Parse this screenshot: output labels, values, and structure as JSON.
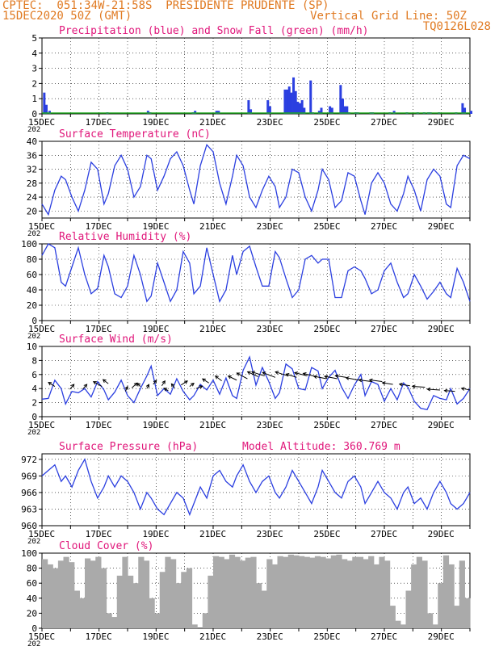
{
  "header": {
    "line1": "CPTEC:  051:34W-21:58S  PRESIDENTE PRUDENTE (SP)",
    "line2_left": "15DEC2020 50Z (GMT)",
    "line2_right": "Vertical Grid Line: 50Z",
    "line3_right": "TQ0126L028"
  },
  "year_label": "202",
  "x_tick_labels": [
    "15DEC",
    "17DEC",
    "19DEC",
    "21DEC",
    "23DEC",
    "25DEC",
    "27DEC",
    "29DEC"
  ],
  "colors": {
    "line": "#2b3fe0",
    "precip": "#2b3fe0",
    "snow": "#1ea81e",
    "cloud": "#aaaaaa",
    "title": "#e0167a",
    "header": "#e07a22"
  },
  "chart_data": [
    {
      "type": "bar",
      "title": "Precipitation (blue) and Snow Fall (green) (mm/h)",
      "ylim": [
        0,
        5
      ],
      "yticks": [
        0,
        1,
        2,
        3,
        4,
        5
      ],
      "x_unit": "days since 15DEC",
      "series": [
        {
          "name": "Precipitation",
          "color": "#2b3fe0",
          "x": [
            0.05,
            0.15,
            0.3,
            3.0,
            4.9,
            5.0,
            7.0,
            7.1,
            8.1,
            8.2,
            9.6,
            9.7,
            10.5,
            10.6,
            11.3,
            11.4,
            11.5,
            11.6,
            11.7,
            11.8,
            11.9,
            12.0,
            12.1,
            12.2,
            12.5,
            12.6,
            12.9,
            13.0,
            13.4,
            13.5,
            13.9,
            14.0,
            14.1,
            14.2,
            14.3,
            14.6,
            14.7,
            15.3,
            15.4,
            16.2,
            16.4,
            17.0,
            17.5,
            17.8,
            18.0,
            18.1,
            18.5,
            19.3,
            19.6,
            19.7,
            20.0
          ],
          "values": [
            1.4,
            0.6,
            0.2,
            0.1,
            0.2,
            0.1,
            0.1,
            0.2,
            0.2,
            0.2,
            0.9,
            0.3,
            0.9,
            0.5,
            1.6,
            1.6,
            1.8,
            1.4,
            2.4,
            1.5,
            0.8,
            0.7,
            0.9,
            0.4,
            2.2,
            0.1,
            0.2,
            0.4,
            0.5,
            0.4,
            1.9,
            1.0,
            0.5,
            0.5,
            0.1,
            0.1,
            0.1,
            0.1,
            0.1,
            0.1,
            0.2,
            0.1,
            0.1,
            0.1,
            0.1,
            0.1,
            0.1,
            0.1,
            0.7,
            0.4,
            0.2
          ]
        },
        {
          "name": "Snow Fall",
          "color": "#1ea81e",
          "x": [
            0,
            20
          ],
          "values": [
            0,
            0
          ]
        }
      ]
    },
    {
      "type": "line",
      "title": "Surface Temperature (nC)",
      "ylim": [
        18,
        40
      ],
      "yticks": [
        20,
        24,
        28,
        32,
        36,
        40
      ],
      "x_unit": "days since 15DEC",
      "series": [
        {
          "name": "Surface Temperature",
          "x": [
            0,
            0.3,
            0.6,
            0.9,
            1.1,
            1.4,
            1.7,
            2.0,
            2.3,
            2.6,
            2.9,
            3.1,
            3.4,
            3.7,
            4.0,
            4.3,
            4.6,
            4.9,
            5.1,
            5.4,
            5.7,
            6.0,
            6.3,
            6.6,
            6.9,
            7.1,
            7.4,
            7.7,
            8.0,
            8.3,
            8.6,
            8.9,
            9.1,
            9.4,
            9.7,
            10.0,
            10.3,
            10.6,
            10.9,
            11.1,
            11.4,
            11.7,
            12.0,
            12.3,
            12.6,
            12.9,
            13.1,
            13.4,
            13.7,
            14.0,
            14.3,
            14.6,
            14.9,
            15.1,
            15.4,
            15.7,
            16.0,
            16.3,
            16.6,
            16.9,
            17.1,
            17.4,
            17.7,
            18.0,
            18.3,
            18.6,
            18.9,
            19.1,
            19.4,
            19.7,
            20.0
          ],
          "values": [
            22,
            19,
            26,
            30,
            29,
            24,
            20,
            26,
            34,
            32,
            22,
            25,
            33,
            36,
            32,
            24,
            27,
            36,
            35,
            26,
            30,
            35,
            37,
            33,
            26,
            22,
            33,
            39,
            37,
            28,
            22,
            30,
            36,
            33,
            24,
            21,
            26,
            30,
            27,
            21,
            24,
            32,
            31,
            24,
            20,
            26,
            32,
            29,
            21,
            23,
            31,
            30,
            23,
            19,
            28,
            31,
            28,
            22,
            20,
            25,
            30,
            26,
            20,
            29,
            32,
            30,
            22,
            21,
            33,
            36,
            35
          ]
        }
      ]
    },
    {
      "type": "line",
      "title": "Relative Humidity (%)",
      "ylim": [
        0,
        100
      ],
      "yticks": [
        0,
        20,
        40,
        60,
        80,
        100
      ],
      "x_unit": "days since 15DEC",
      "series": [
        {
          "name": "Relative Humidity",
          "x": [
            0,
            0.3,
            0.6,
            0.9,
            1.1,
            1.4,
            1.7,
            2.0,
            2.3,
            2.6,
            2.9,
            3.1,
            3.4,
            3.7,
            4.0,
            4.3,
            4.6,
            4.9,
            5.1,
            5.4,
            5.7,
            6.0,
            6.3,
            6.6,
            6.9,
            7.1,
            7.4,
            7.7,
            8.0,
            8.3,
            8.6,
            8.9,
            9.1,
            9.4,
            9.7,
            10.0,
            10.3,
            10.6,
            10.9,
            11.1,
            11.4,
            11.7,
            12.0,
            12.3,
            12.6,
            12.9,
            13.1,
            13.4,
            13.7,
            14.0,
            14.3,
            14.6,
            14.9,
            15.1,
            15.4,
            15.7,
            16.0,
            16.3,
            16.6,
            16.9,
            17.1,
            17.4,
            17.7,
            18.0,
            18.3,
            18.6,
            18.9,
            19.1,
            19.4,
            19.7,
            20.0
          ],
          "values": [
            85,
            100,
            95,
            50,
            45,
            70,
            95,
            60,
            35,
            42,
            85,
            70,
            35,
            30,
            45,
            85,
            60,
            25,
            32,
            75,
            50,
            25,
            40,
            90,
            75,
            35,
            45,
            95,
            60,
            25,
            40,
            85,
            60,
            90,
            97,
            70,
            45,
            45,
            90,
            82,
            55,
            30,
            40,
            80,
            85,
            75,
            80,
            80,
            30,
            30,
            65,
            70,
            65,
            55,
            35,
            40,
            65,
            75,
            50,
            30,
            35,
            60,
            45,
            28,
            38,
            50,
            35,
            30,
            68,
            50,
            25
          ]
        }
      ]
    },
    {
      "type": "line",
      "title": "Surface Wind (m/s)",
      "ylim": [
        0,
        10
      ],
      "yticks": [
        0,
        2,
        4,
        6,
        8,
        10
      ],
      "x_unit": "days since 15DEC",
      "series": [
        {
          "name": "Surface Wind",
          "x": [
            0,
            0.3,
            0.6,
            0.9,
            1.1,
            1.4,
            1.7,
            2.0,
            2.3,
            2.6,
            2.9,
            3.1,
            3.4,
            3.7,
            4.0,
            4.3,
            4.6,
            4.9,
            5.1,
            5.4,
            5.7,
            6.0,
            6.3,
            6.6,
            6.9,
            7.1,
            7.4,
            7.7,
            8.0,
            8.3,
            8.6,
            8.9,
            9.1,
            9.4,
            9.7,
            10.0,
            10.3,
            10.6,
            10.9,
            11.1,
            11.4,
            11.7,
            12.0,
            12.3,
            12.6,
            12.9,
            13.1,
            13.4,
            13.7,
            14.0,
            14.3,
            14.6,
            14.9,
            15.1,
            15.4,
            15.7,
            16.0,
            16.3,
            16.6,
            16.9,
            17.1,
            17.4,
            17.7,
            18.0,
            18.3,
            18.6,
            18.9,
            19.1,
            19.4,
            19.7,
            20.0
          ],
          "values": [
            2.5,
            2.6,
            5.2,
            4.0,
            1.8,
            3.6,
            3.4,
            4.0,
            2.8,
            5.0,
            3.8,
            2.4,
            3.5,
            5.2,
            3.0,
            2.0,
            4.0,
            5.8,
            7.2,
            3.0,
            4.0,
            3.2,
            5.4,
            3.6,
            2.4,
            3.0,
            4.6,
            3.8,
            5.2,
            3.2,
            5.5,
            3.0,
            2.6,
            6.6,
            8.5,
            4.5,
            7.0,
            5.0,
            2.6,
            3.4,
            7.5,
            6.8,
            4.0,
            3.8,
            7.0,
            6.5,
            4.0,
            5.6,
            6.6,
            4.2,
            2.6,
            4.5,
            6.0,
            3.0,
            5.0,
            4.6,
            2.2,
            4.0,
            2.4,
            4.8,
            4.2,
            2.2,
            1.2,
            1.0,
            3.0,
            2.6,
            2.4,
            4.0,
            1.8,
            2.6,
            4.0
          ]
        }
      ],
      "arrows": {
        "x": [
          0.6,
          1.3,
          1.9,
          2.8,
          3.1,
          3.9,
          4.2,
          4.6,
          4.9,
          5.2,
          5.6,
          5.9,
          6.2,
          6.5,
          6.9,
          7.2,
          7.8,
          8.4,
          9.1,
          9.6,
          10.1,
          10.4,
          10.9,
          11.5,
          11.9,
          12.4,
          12.8,
          13.3,
          13.8,
          14.2,
          14.8,
          15.4,
          15.9,
          16.4,
          17.2,
          17.9,
          18.6,
          19.3,
          20.0
        ],
        "dx": [
          -6,
          4,
          4,
          -8,
          -5,
          2,
          5,
          -3,
          2,
          3,
          3,
          -4,
          -3,
          6,
          4,
          6,
          -6,
          -6,
          -8,
          -10,
          -10,
          -12,
          -12,
          -12,
          -10,
          -12,
          -12,
          -12,
          -12,
          -10,
          -12,
          -12,
          -12,
          -10,
          -10,
          -12,
          -12,
          -10,
          -8
        ],
        "dy": [
          -5,
          -6,
          -6,
          -6,
          -5,
          -6,
          -6,
          -4,
          -5,
          -5,
          -6,
          -3,
          -5,
          -5,
          -4,
          -3,
          -5,
          -6,
          -5,
          -7,
          -6,
          -5,
          -6,
          -5,
          -4,
          -4,
          -4,
          -3,
          -3,
          -2,
          -3,
          -2,
          -2,
          -2,
          -2,
          -1,
          -1,
          -1,
          -2
        ],
        "y": [
          4.3,
          3.9,
          3.9,
          4.3,
          4.7,
          3.6,
          4.1,
          4.3,
          4.0,
          4.6,
          4.4,
          3.7,
          4.1,
          4.5,
          4.3,
          4.0,
          4.8,
          5.1,
          5.2,
          5.4,
          5.7,
          5.8,
          5.6,
          5.8,
          5.6,
          5.8,
          5.7,
          5.4,
          5.4,
          5.6,
          5.2,
          5.0,
          5.0,
          4.6,
          4.4,
          4.2,
          3.8,
          3.6,
          3.8
        ]
      }
    },
    {
      "type": "line",
      "title": "Surface Pressure (hPa)",
      "subtitle": "Model Altitude: 360.769 m",
      "ylim": [
        960,
        973
      ],
      "yticks": [
        960,
        963,
        966,
        969,
        972
      ],
      "x_unit": "days since 15DEC",
      "series": [
        {
          "name": "Surface Pressure",
          "x": [
            0,
            0.3,
            0.6,
            0.9,
            1.1,
            1.4,
            1.7,
            2.0,
            2.3,
            2.6,
            2.9,
            3.1,
            3.4,
            3.7,
            4.0,
            4.3,
            4.6,
            4.9,
            5.1,
            5.4,
            5.7,
            6.0,
            6.3,
            6.6,
            6.9,
            7.1,
            7.4,
            7.7,
            8.0,
            8.3,
            8.6,
            8.9,
            9.1,
            9.4,
            9.7,
            10.0,
            10.3,
            10.6,
            10.9,
            11.1,
            11.4,
            11.7,
            12.0,
            12.3,
            12.6,
            12.9,
            13.1,
            13.4,
            13.7,
            14.0,
            14.3,
            14.6,
            14.9,
            15.1,
            15.4,
            15.7,
            16.0,
            16.3,
            16.6,
            16.9,
            17.1,
            17.4,
            17.7,
            18.0,
            18.3,
            18.6,
            18.9,
            19.1,
            19.4,
            19.7,
            20.0
          ],
          "values": [
            969,
            970,
            971,
            968,
            969,
            967,
            970,
            972,
            968,
            965,
            967,
            969,
            967,
            969,
            968,
            966,
            963,
            966,
            965,
            963,
            962,
            964,
            966,
            965,
            962,
            964,
            967,
            965,
            969,
            970,
            968,
            967,
            969,
            971,
            968,
            966,
            968,
            969,
            966,
            965,
            967,
            970,
            968,
            966,
            964,
            967,
            970,
            968,
            966,
            965,
            968,
            969,
            967,
            964,
            966,
            968,
            966,
            965,
            963,
            966,
            967,
            964,
            965,
            963,
            966,
            968,
            966,
            964,
            963,
            964,
            966
          ]
        }
      ]
    },
    {
      "type": "bar",
      "title": "Cloud Cover (%)",
      "ylim": [
        0,
        100
      ],
      "yticks": [
        0,
        20,
        40,
        60,
        80,
        100
      ],
      "x_unit": "days since 15DEC",
      "series": [
        {
          "name": "Cloud Cover",
          "x": [
            0,
            0.25,
            0.5,
            0.75,
            1.0,
            1.25,
            1.5,
            1.75,
            2.0,
            2.25,
            2.5,
            2.75,
            3.0,
            3.25,
            3.5,
            3.75,
            4.0,
            4.25,
            4.5,
            4.75,
            5.0,
            5.25,
            5.5,
            5.75,
            6.0,
            6.25,
            6.5,
            6.75,
            7.0,
            7.25,
            7.5,
            7.75,
            8.0,
            8.25,
            8.5,
            8.75,
            9.0,
            9.25,
            9.5,
            9.75,
            10.0,
            10.25,
            10.5,
            10.75,
            11.0,
            11.25,
            11.5,
            11.75,
            12.0,
            12.25,
            12.5,
            12.75,
            13.0,
            13.25,
            13.5,
            13.75,
            14.0,
            14.25,
            14.5,
            14.75,
            15.0,
            15.25,
            15.5,
            15.75,
            16.0,
            16.25,
            16.5,
            16.75,
            17.0,
            17.25,
            17.5,
            17.75,
            18.0,
            18.25,
            18.5,
            18.75,
            19.0,
            19.25,
            19.5,
            19.75
          ],
          "values": [
            92,
            85,
            80,
            90,
            95,
            88,
            50,
            40,
            93,
            90,
            95,
            80,
            20,
            15,
            70,
            95,
            70,
            60,
            95,
            90,
            40,
            20,
            75,
            95,
            92,
            60,
            75,
            80,
            5,
            0,
            20,
            70,
            96,
            95,
            92,
            98,
            95,
            90,
            94,
            95,
            60,
            50,
            92,
            85,
            96,
            95,
            98,
            97,
            96,
            95,
            94,
            96,
            95,
            93,
            97,
            98,
            92,
            90,
            95,
            95,
            92,
            96,
            85,
            95,
            90,
            30,
            10,
            5,
            50,
            85,
            95,
            90,
            20,
            5,
            60,
            97,
            85,
            30,
            90,
            40
          ]
        }
      ]
    }
  ]
}
